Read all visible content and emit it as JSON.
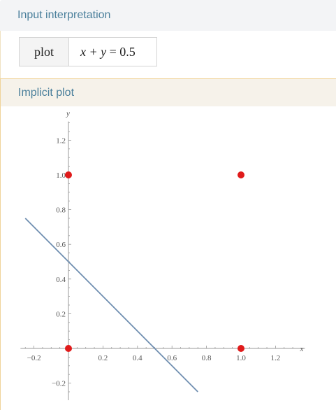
{
  "pods": {
    "input": {
      "title": "Input interpretation",
      "command": "plot",
      "expression_parts": {
        "left": "x + y",
        "eq": " = ",
        "right": "0.5"
      }
    },
    "plot": {
      "title": "Implicit plot"
    }
  },
  "chart_data": {
    "type": "line",
    "xlabel": "x",
    "ylabel": "y",
    "xlim": [
      -0.27,
      1.33
    ],
    "ylim": [
      -0.25,
      1.3
    ],
    "x_ticks": [
      {
        "value": -0.2,
        "label": "-0.2"
      },
      {
        "value": 0.2,
        "label": "0.2"
      },
      {
        "value": 0.4,
        "label": "0.4"
      },
      {
        "value": 0.6,
        "label": "0.6"
      },
      {
        "value": 0.8,
        "label": "0.8"
      },
      {
        "value": 1.0,
        "label": "1.0"
      },
      {
        "value": 1.2,
        "label": "1.2"
      }
    ],
    "y_ticks": [
      {
        "value": -0.2,
        "label": "-0.2"
      },
      {
        "value": 0.2,
        "label": "0.2"
      },
      {
        "value": 0.4,
        "label": "0.4"
      },
      {
        "value": 0.6,
        "label": "0.6"
      },
      {
        "value": 0.8,
        "label": "0.8"
      },
      {
        "value": 1.0,
        "label": "1.0"
      },
      {
        "value": 1.2,
        "label": "1.2"
      }
    ],
    "series": [
      {
        "x": [
          -0.25,
          0.75
        ],
        "y": [
          0.75,
          -0.25
        ],
        "color": "#6f8eb0"
      }
    ],
    "points": [
      {
        "x": 0,
        "y": 0
      },
      {
        "x": 0,
        "y": 1
      },
      {
        "x": 1,
        "y": 0
      },
      {
        "x": 1,
        "y": 1
      }
    ],
    "point_color": "#e01b1b",
    "grid": false
  }
}
